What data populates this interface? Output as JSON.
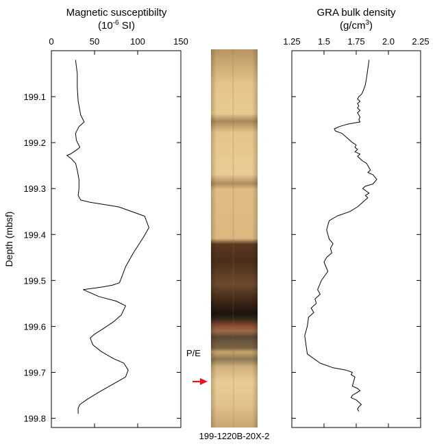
{
  "chart_data": [
    {
      "type": "line",
      "title": "Magnetic susceptibilty",
      "subtitle_parts": [
        "(10",
        "-6",
        " SI)"
      ],
      "ylabel": "Depth (mbsf)",
      "xlim": [
        0,
        150
      ],
      "ylim": [
        199.0,
        199.82
      ],
      "y_inverted": true,
      "xticks": [
        "0",
        "50",
        "100",
        "150"
      ],
      "yticks": [
        "199.1",
        "199.2",
        "199.3",
        "199.4",
        "199.5",
        "199.6",
        "199.7",
        "199.8"
      ],
      "x": [
        28,
        30,
        30,
        31,
        34,
        38,
        32,
        28,
        29,
        33,
        30,
        22,
        18,
        23,
        28,
        30,
        32,
        32,
        31,
        34,
        45,
        78,
        108,
        113,
        107,
        95,
        86,
        79,
        71,
        60,
        37,
        55,
        75,
        86,
        81,
        72,
        60,
        50,
        45,
        48,
        58,
        72,
        84,
        89,
        86,
        72,
        56,
        42,
        33,
        31,
        31,
        31
      ],
      "y": [
        199.02,
        199.05,
        199.08,
        199.11,
        199.14,
        199.155,
        199.165,
        199.18,
        199.195,
        199.21,
        199.215,
        199.225,
        199.228,
        199.235,
        199.245,
        199.26,
        199.28,
        199.3,
        199.315,
        199.325,
        199.33,
        199.34,
        199.36,
        199.385,
        199.405,
        199.44,
        199.47,
        199.505,
        199.51,
        199.514,
        199.52,
        199.535,
        199.545,
        199.555,
        199.575,
        199.59,
        199.605,
        199.617,
        199.625,
        199.64,
        199.655,
        199.67,
        199.68,
        199.695,
        199.71,
        199.725,
        199.742,
        199.758,
        199.77,
        199.778,
        199.785,
        199.79
      ]
    },
    {
      "type": "line",
      "title": "GRA bulk density",
      "subtitle_parts": [
        "(g/cm",
        "3",
        ")"
      ],
      "xlim": [
        1.25,
        2.25
      ],
      "ylim": [
        199.0,
        199.82
      ],
      "y_inverted": true,
      "xticks": [
        "1.25",
        "1.5",
        "1.75",
        "2.0",
        "2.25"
      ],
      "x": [
        1.85,
        1.84,
        1.83,
        1.82,
        1.8,
        1.79,
        1.77,
        1.76,
        1.78,
        1.76,
        1.77,
        1.76,
        1.78,
        1.76,
        1.77,
        1.78,
        1.77,
        1.78,
        1.68,
        1.62,
        1.58,
        1.59,
        1.64,
        1.68,
        1.72,
        1.75,
        1.74,
        1.76,
        1.74,
        1.78,
        1.76,
        1.8,
        1.83,
        1.86,
        1.84,
        1.88,
        1.91,
        1.88,
        1.82,
        1.8,
        1.85,
        1.82,
        1.84,
        1.8,
        1.76,
        1.7,
        1.6,
        1.54,
        1.53,
        1.52,
        1.53,
        1.54,
        1.57,
        1.55,
        1.56,
        1.52,
        1.5,
        1.53,
        1.48,
        1.45,
        1.47,
        1.43,
        1.44,
        1.4,
        1.42,
        1.38,
        1.37,
        1.35,
        1.36,
        1.37,
        1.47,
        1.57,
        1.67,
        1.72,
        1.71,
        1.74,
        1.73,
        1.72,
        1.76,
        1.78,
        1.75,
        1.72,
        1.71,
        1.75,
        1.77,
        1.79,
        1.77,
        1.76,
        1.77
      ],
      "y": [
        199.02,
        199.04,
        199.06,
        199.075,
        199.09,
        199.095,
        199.1,
        199.105,
        199.11,
        199.115,
        199.12,
        199.125,
        199.13,
        199.135,
        199.14,
        199.145,
        199.15,
        199.155,
        199.16,
        199.165,
        199.17,
        199.175,
        199.18,
        199.19,
        199.2,
        199.205,
        199.21,
        199.215,
        199.22,
        199.225,
        199.23,
        199.24,
        199.245,
        199.26,
        199.265,
        199.27,
        199.28,
        199.29,
        199.295,
        199.3,
        199.31,
        199.315,
        199.32,
        199.33,
        199.34,
        199.35,
        199.36,
        199.37,
        199.38,
        199.39,
        199.4,
        199.41,
        199.42,
        199.43,
        199.44,
        199.45,
        199.46,
        199.48,
        199.5,
        199.52,
        199.53,
        199.54,
        199.55,
        199.56,
        199.57,
        199.58,
        199.6,
        199.62,
        199.64,
        199.66,
        199.68,
        199.69,
        199.695,
        199.7,
        199.705,
        199.71,
        199.72,
        199.73,
        199.735,
        199.74,
        199.745,
        199.75,
        199.755,
        199.76,
        199.765,
        199.77,
        199.775,
        199.78,
        199.785
      ]
    }
  ],
  "core": {
    "label": "199-1220B-20X-2",
    "marker_label": "P/E",
    "marker_depth": 199.72
  },
  "colors": {
    "axis": "#000000",
    "line": "#000000",
    "arrow": "#e8141b",
    "core_light": "#d9b57c",
    "core_dark": "#2a1810"
  }
}
